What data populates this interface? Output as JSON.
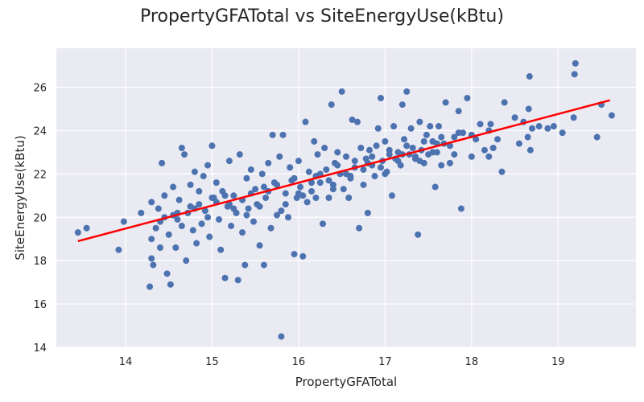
{
  "chart_data": {
    "type": "scatter",
    "title": "PropertyGFATotal vs SiteEnergyUse(kBtu)",
    "xlabel": "PropertyGFATotal",
    "ylabel": "SiteEnergyUse(kBtu)",
    "xlim": [
      13.2,
      19.9
    ],
    "ylim": [
      14,
      27.8
    ],
    "xticks": [
      14,
      15,
      16,
      17,
      18,
      19
    ],
    "yticks": [
      14,
      16,
      18,
      20,
      22,
      24,
      26
    ],
    "grid": true,
    "colors": {
      "points": "#4c72b0",
      "fit_line": "#ff0000",
      "background": "#eaeaf2",
      "grid": "#ffffff"
    },
    "fit_line": {
      "x": [
        13.45,
        19.6
      ],
      "y": [
        18.9,
        25.4
      ]
    },
    "points": [
      [
        13.45,
        19.3
      ],
      [
        13.55,
        19.5
      ],
      [
        13.92,
        18.5
      ],
      [
        13.98,
        19.8
      ],
      [
        14.18,
        20.2
      ],
      [
        14.28,
        16.8
      ],
      [
        14.3,
        18.1
      ],
      [
        14.32,
        17.8
      ],
      [
        14.3,
        19.0
      ],
      [
        14.35,
        19.5
      ],
      [
        14.3,
        20.7
      ],
      [
        14.38,
        20.4
      ],
      [
        14.4,
        18.6
      ],
      [
        14.42,
        22.5
      ],
      [
        14.45,
        20.0
      ],
      [
        14.48,
        17.4
      ],
      [
        14.5,
        19.2
      ],
      [
        14.52,
        16.9
      ],
      [
        14.55,
        21.4
      ],
      [
        14.58,
        18.6
      ],
      [
        14.6,
        19.9
      ],
      [
        14.62,
        20.8
      ],
      [
        14.65,
        23.2
      ],
      [
        14.68,
        22.9
      ],
      [
        14.7,
        18.0
      ],
      [
        14.72,
        20.2
      ],
      [
        14.75,
        21.5
      ],
      [
        14.78,
        19.4
      ],
      [
        14.8,
        22.1
      ],
      [
        14.82,
        18.8
      ],
      [
        14.85,
        20.6
      ],
      [
        14.88,
        19.7
      ],
      [
        14.9,
        21.9
      ],
      [
        14.92,
        20.3
      ],
      [
        14.95,
        22.4
      ],
      [
        14.97,
        19.1
      ],
      [
        15.0,
        23.3
      ],
      [
        15.02,
        20.9
      ],
      [
        15.05,
        21.6
      ],
      [
        15.08,
        19.9
      ],
      [
        15.1,
        18.5
      ],
      [
        15.12,
        21.2
      ],
      [
        15.15,
        17.2
      ],
      [
        15.18,
        20.5
      ],
      [
        15.2,
        22.6
      ],
      [
        15.22,
        19.6
      ],
      [
        15.25,
        21.0
      ],
      [
        15.28,
        20.2
      ],
      [
        15.3,
        17.1
      ],
      [
        15.32,
        22.9
      ],
      [
        15.35,
        19.3
      ],
      [
        15.38,
        17.8
      ],
      [
        15.4,
        21.8
      ],
      [
        15.42,
        20.4
      ],
      [
        15.45,
        22.2
      ],
      [
        15.48,
        19.8
      ],
      [
        15.5,
        21.3
      ],
      [
        15.52,
        20.6
      ],
      [
        15.55,
        18.7
      ],
      [
        15.58,
        22.0
      ],
      [
        15.6,
        17.8
      ],
      [
        15.62,
        20.9
      ],
      [
        15.65,
        22.5
      ],
      [
        15.68,
        19.5
      ],
      [
        15.7,
        23.8
      ],
      [
        15.72,
        21.6
      ],
      [
        15.75,
        20.1
      ],
      [
        15.78,
        22.8
      ],
      [
        15.8,
        14.5
      ],
      [
        15.82,
        23.8
      ],
      [
        15.85,
        21.1
      ],
      [
        15.88,
        20.0
      ],
      [
        15.9,
        22.3
      ],
      [
        15.92,
        21.7
      ],
      [
        15.95,
        18.3
      ],
      [
        15.98,
        20.9
      ],
      [
        16.0,
        22.6
      ],
      [
        16.02,
        21.4
      ],
      [
        16.05,
        18.2
      ],
      [
        16.08,
        24.4
      ],
      [
        16.1,
        20.7
      ],
      [
        16.12,
        22.1
      ],
      [
        16.15,
        21.2
      ],
      [
        16.18,
        23.5
      ],
      [
        16.2,
        20.9
      ],
      [
        16.22,
        22.9
      ],
      [
        16.25,
        21.6
      ],
      [
        16.28,
        19.7
      ],
      [
        16.3,
        23.2
      ],
      [
        16.32,
        22.2
      ],
      [
        16.35,
        20.9
      ],
      [
        16.38,
        25.2
      ],
      [
        16.4,
        21.5
      ],
      [
        16.42,
        22.5
      ],
      [
        16.45,
        23.0
      ],
      [
        16.48,
        22.0
      ],
      [
        16.5,
        25.8
      ],
      [
        16.52,
        21.3
      ],
      [
        16.55,
        22.8
      ],
      [
        16.58,
        20.9
      ],
      [
        16.6,
        21.8
      ],
      [
        16.62,
        24.5
      ],
      [
        16.65,
        22.3
      ],
      [
        16.68,
        24.4
      ],
      [
        16.7,
        19.5
      ],
      [
        16.72,
        23.2
      ],
      [
        16.75,
        21.5
      ],
      [
        16.78,
        22.7
      ],
      [
        16.8,
        20.2
      ],
      [
        16.82,
        23.1
      ],
      [
        16.85,
        22.4
      ],
      [
        16.88,
        21.9
      ],
      [
        16.9,
        23.3
      ],
      [
        16.92,
        24.1
      ],
      [
        16.95,
        25.5
      ],
      [
        16.97,
        22.6
      ],
      [
        17.0,
        23.5
      ],
      [
        17.02,
        22.1
      ],
      [
        17.05,
        22.9
      ],
      [
        17.08,
        21.0
      ],
      [
        17.1,
        24.2
      ],
      [
        17.12,
        22.7
      ],
      [
        17.15,
        23.0
      ],
      [
        17.18,
        22.4
      ],
      [
        17.2,
        25.2
      ],
      [
        17.22,
        23.6
      ],
      [
        17.25,
        25.8
      ],
      [
        17.28,
        22.9
      ],
      [
        17.3,
        24.1
      ],
      [
        17.32,
        23.2
      ],
      [
        17.35,
        22.7
      ],
      [
        17.38,
        19.2
      ],
      [
        17.4,
        24.4
      ],
      [
        17.42,
        23.1
      ],
      [
        17.45,
        22.5
      ],
      [
        17.48,
        23.8
      ],
      [
        17.5,
        22.9
      ],
      [
        17.52,
        24.2
      ],
      [
        17.55,
        23.5
      ],
      [
        17.58,
        21.4
      ],
      [
        17.6,
        23.0
      ],
      [
        17.62,
        24.2
      ],
      [
        17.65,
        22.4
      ],
      [
        17.68,
        23.4
      ],
      [
        17.7,
        25.3
      ],
      [
        17.75,
        22.5
      ],
      [
        17.8,
        23.7
      ],
      [
        17.85,
        24.9
      ],
      [
        17.88,
        20.4
      ],
      [
        17.9,
        23.9
      ],
      [
        17.95,
        25.5
      ],
      [
        18.0,
        22.8
      ],
      [
        18.05,
        23.6
      ],
      [
        18.1,
        24.3
      ],
      [
        18.15,
        23.1
      ],
      [
        18.2,
        22.8
      ],
      [
        18.22,
        24.3
      ],
      [
        18.25,
        23.2
      ],
      [
        18.3,
        23.6
      ],
      [
        18.35,
        22.1
      ],
      [
        18.38,
        25.3
      ],
      [
        18.5,
        24.6
      ],
      [
        18.55,
        23.4
      ],
      [
        18.6,
        24.4
      ],
      [
        18.65,
        23.7
      ],
      [
        18.66,
        25.0
      ],
      [
        18.67,
        26.5
      ],
      [
        18.68,
        23.1
      ],
      [
        18.7,
        24.1
      ],
      [
        18.78,
        24.2
      ],
      [
        18.88,
        24.1
      ],
      [
        18.95,
        24.2
      ],
      [
        19.05,
        23.9
      ],
      [
        19.18,
        24.6
      ],
      [
        19.19,
        26.6
      ],
      [
        19.2,
        27.1
      ],
      [
        19.45,
        23.7
      ],
      [
        19.5,
        25.2
      ],
      [
        19.62,
        24.7
      ],
      [
        14.45,
        21.0
      ],
      [
        14.55,
        20.1
      ],
      [
        14.65,
        19.6
      ],
      [
        14.75,
        20.5
      ],
      [
        14.85,
        21.2
      ],
      [
        14.95,
        20.0
      ],
      [
        15.05,
        20.7
      ],
      [
        15.15,
        21.0
      ],
      [
        15.25,
        20.4
      ],
      [
        15.35,
        20.8
      ],
      [
        15.45,
        21.1
      ],
      [
        15.55,
        20.5
      ],
      [
        15.65,
        21.2
      ],
      [
        15.75,
        21.5
      ],
      [
        15.85,
        20.6
      ],
      [
        15.95,
        21.8
      ],
      [
        16.05,
        21.0
      ],
      [
        16.15,
        21.6
      ],
      [
        16.25,
        22.0
      ],
      [
        16.35,
        21.7
      ],
      [
        16.45,
        22.4
      ],
      [
        16.55,
        22.0
      ],
      [
        16.65,
        22.6
      ],
      [
        16.75,
        22.2
      ],
      [
        16.85,
        22.8
      ],
      [
        16.95,
        22.3
      ],
      [
        17.05,
        23.1
      ],
      [
        17.15,
        22.6
      ],
      [
        17.25,
        23.3
      ],
      [
        17.35,
        22.8
      ],
      [
        17.45,
        23.5
      ],
      [
        17.55,
        23.0
      ],
      [
        17.65,
        23.7
      ],
      [
        17.75,
        23.3
      ],
      [
        17.85,
        23.9
      ],
      [
        14.4,
        19.8
      ],
      [
        14.6,
        20.2
      ],
      [
        14.8,
        20.4
      ],
      [
        15.0,
        20.9
      ],
      [
        15.2,
        20.6
      ],
      [
        15.4,
        20.1
      ],
      [
        15.6,
        21.4
      ],
      [
        15.8,
        20.3
      ],
      [
        16.0,
        21.1
      ],
      [
        16.2,
        21.9
      ],
      [
        16.4,
        21.3
      ],
      [
        16.6,
        21.9
      ],
      [
        16.8,
        22.5
      ],
      [
        17.0,
        22.0
      ],
      [
        17.2,
        22.9
      ],
      [
        17.4,
        22.6
      ],
      [
        17.6,
        23.4
      ],
      [
        17.8,
        22.9
      ],
      [
        18.0,
        23.8
      ],
      [
        18.2,
        24.0
      ]
    ]
  }
}
